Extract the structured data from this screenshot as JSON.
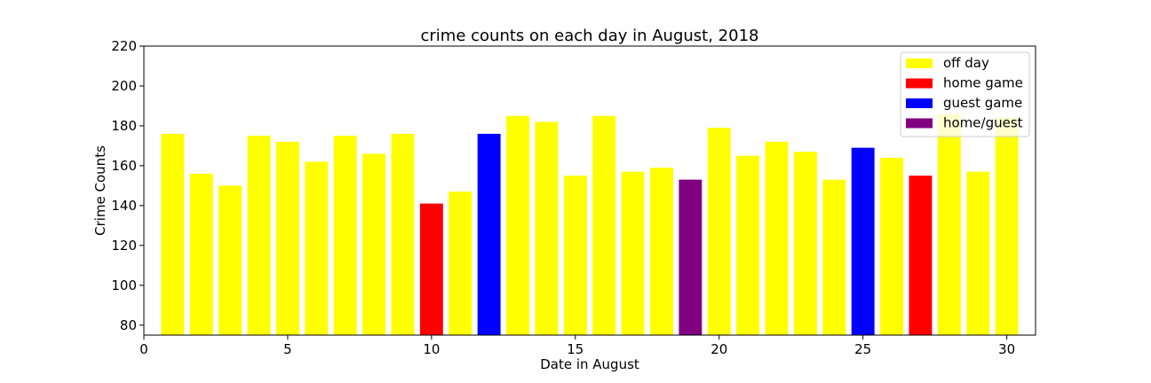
{
  "chart_data": {
    "type": "bar",
    "title": "crime counts on each day in August, 2018",
    "xlabel": "Date in August",
    "ylabel": "Crime Counts",
    "xlim": [
      0,
      31
    ],
    "ylim": [
      75,
      220
    ],
    "x_ticks": [
      0,
      5,
      10,
      15,
      20,
      25,
      30
    ],
    "y_ticks": [
      80,
      100,
      120,
      140,
      160,
      180,
      200,
      220
    ],
    "grid": false,
    "legend_position": "top-right",
    "categories_legend": [
      {
        "key": "off",
        "label": "off day",
        "color": "#ffff00"
      },
      {
        "key": "home",
        "label": "home game",
        "color": "#ff0000"
      },
      {
        "key": "guest",
        "label": "guest game",
        "color": "#0000ff"
      },
      {
        "key": "homeguest",
        "label": "home/guest",
        "color": "#800080"
      }
    ],
    "bars": [
      {
        "day": 1,
        "value": 176,
        "category": "off"
      },
      {
        "day": 2,
        "value": 156,
        "category": "off"
      },
      {
        "day": 3,
        "value": 150,
        "category": "off"
      },
      {
        "day": 4,
        "value": 175,
        "category": "off"
      },
      {
        "day": 5,
        "value": 172,
        "category": "off"
      },
      {
        "day": 6,
        "value": 162,
        "category": "off"
      },
      {
        "day": 7,
        "value": 175,
        "category": "off"
      },
      {
        "day": 8,
        "value": 166,
        "category": "off"
      },
      {
        "day": 9,
        "value": 176,
        "category": "off"
      },
      {
        "day": 10,
        "value": 141,
        "category": "home"
      },
      {
        "day": 11,
        "value": 147,
        "category": "off"
      },
      {
        "day": 12,
        "value": 176,
        "category": "guest"
      },
      {
        "day": 13,
        "value": 185,
        "category": "off"
      },
      {
        "day": 14,
        "value": 182,
        "category": "off"
      },
      {
        "day": 15,
        "value": 155,
        "category": "off"
      },
      {
        "day": 16,
        "value": 185,
        "category": "off"
      },
      {
        "day": 17,
        "value": 157,
        "category": "off"
      },
      {
        "day": 18,
        "value": 159,
        "category": "off"
      },
      {
        "day": 19,
        "value": 153,
        "category": "homeguest"
      },
      {
        "day": 20,
        "value": 179,
        "category": "off"
      },
      {
        "day": 21,
        "value": 165,
        "category": "off"
      },
      {
        "day": 22,
        "value": 172,
        "category": "off"
      },
      {
        "day": 23,
        "value": 167,
        "category": "off"
      },
      {
        "day": 24,
        "value": 153,
        "category": "off"
      },
      {
        "day": 25,
        "value": 169,
        "category": "guest"
      },
      {
        "day": 26,
        "value": 164,
        "category": "off"
      },
      {
        "day": 27,
        "value": 155,
        "category": "home"
      },
      {
        "day": 28,
        "value": 186,
        "category": "off"
      },
      {
        "day": 29,
        "value": 157,
        "category": "off"
      },
      {
        "day": 30,
        "value": 184,
        "category": "off"
      }
    ]
  }
}
